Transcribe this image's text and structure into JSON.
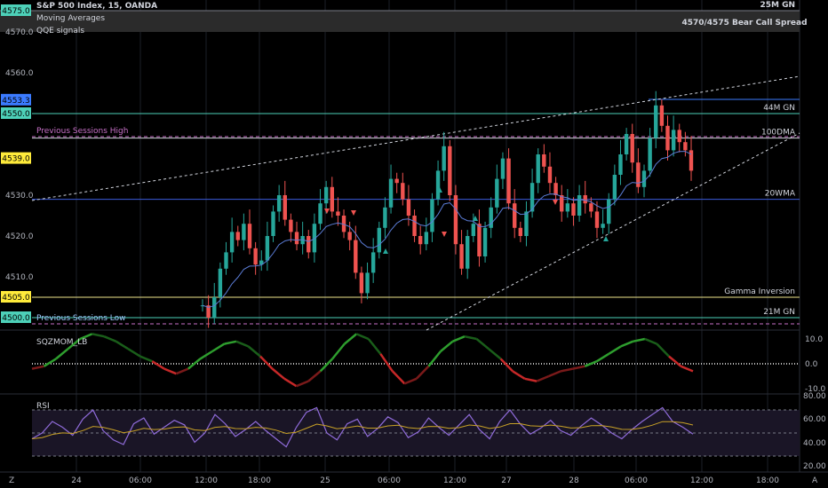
{
  "header": {
    "symbol": "S&P 500 Index, 15, OANDA",
    "indicator1": "Moving Averages",
    "indicator2": "QQE signals",
    "strategy_label": "4570/4575 Bear Call Spread",
    "top_right": "25M GN"
  },
  "levels": [
    {
      "name": "44M GN",
      "price": 4550.0,
      "color": "#4dd0b8"
    },
    {
      "name": "100DMA",
      "price": 4544.0,
      "color": "#d1d4dc"
    },
    {
      "name": "20WMA",
      "price": 4529.0,
      "color": "#3b5bdb"
    },
    {
      "name": "Gamma Inversion",
      "price": 4505.0,
      "color": "#f0e68c"
    },
    {
      "name": "21M GN",
      "price": 4500.0,
      "color": "#4dd0b8"
    }
  ],
  "session_labels": {
    "high": "Previous Sessions High",
    "low": "Previous Sessions Low"
  },
  "price_badges": [
    {
      "value": "4575.0",
      "color": "#4dd0b8"
    },
    {
      "value": "4553.3",
      "color": "#3b7bff"
    },
    {
      "value": "4550.0",
      "color": "#4dd0b8"
    },
    {
      "value": "4539.0",
      "color": "#ffeb3b"
    },
    {
      "value": "4505.0",
      "color": "#ffeb3b"
    },
    {
      "value": "4500.0",
      "color": "#4dd0b8"
    }
  ],
  "price_axis": [
    "4570.0",
    "4560.0",
    "4530.0",
    "4520.0",
    "4510.0"
  ],
  "time_axis": [
    "24",
    "06:00",
    "12:00",
    "18:00",
    "25",
    "06:00",
    "12:00",
    "27",
    "28",
    "06:00",
    "12:00",
    "18:00"
  ],
  "sqz": {
    "title": "SQZMOM_LB",
    "ticks": [
      "10.0",
      "0.0",
      "-10.0"
    ]
  },
  "rsi": {
    "title": "RSI",
    "ticks": [
      "80.00",
      "60.00",
      "40.00",
      "20.00"
    ]
  },
  "bottom": {
    "left": "Z",
    "right": "A"
  },
  "chart_data": {
    "type": "candlestick",
    "ylim": [
      4496,
      4580
    ],
    "close": [
      4503,
      4500,
      4505,
      4512,
      4516,
      4521,
      4519,
      4523,
      4517,
      4513,
      4514,
      4520,
      4526,
      4530,
      4524,
      4521,
      4518,
      4520,
      4516,
      4523,
      4528,
      4532,
      4526,
      4525,
      4521,
      4519,
      4511,
      4506,
      4511,
      4516,
      4522,
      4527,
      4534,
      4533,
      4529,
      4525,
      4520,
      4518,
      4521,
      4529,
      4536,
      4542,
      4530,
      4518,
      4512,
      4520,
      4523,
      4515,
      4522,
      4527,
      4534,
      4539,
      4528,
      4522,
      4520,
      4526,
      4533,
      4540,
      4537,
      4533,
      4530,
      4526,
      4528,
      4525,
      4530,
      4528,
      4526,
      4522,
      4523,
      4529,
      4535,
      4540,
      4545,
      4538,
      4532,
      4536,
      4544,
      4552,
      4547,
      4541,
      4546,
      4543,
      4541,
      4536
    ],
    "sqz_values": [
      -2,
      -1,
      2,
      6,
      10,
      12,
      11,
      9,
      6,
      3,
      1,
      -2,
      -4,
      -2,
      2,
      5,
      8,
      9,
      7,
      3,
      -2,
      -6,
      -9,
      -7,
      -3,
      2,
      8,
      12,
      10,
      4,
      -3,
      -8,
      -6,
      -1,
      5,
      9,
      11,
      10,
      6,
      2,
      -3,
      -6,
      -7,
      -5,
      -3,
      -2,
      -1,
      1,
      4,
      7,
      9,
      10,
      8,
      3,
      -1,
      -3
    ],
    "rsi_values": [
      45,
      50,
      60,
      55,
      48,
      62,
      70,
      52,
      44,
      40,
      58,
      63,
      49,
      55,
      61,
      57,
      42,
      50,
      66,
      58,
      47,
      53,
      60,
      52,
      45,
      38,
      55,
      68,
      72,
      50,
      44,
      58,
      62,
      47,
      54,
      64,
      59,
      46,
      51,
      63,
      55,
      48,
      57,
      66,
      53,
      45,
      60,
      70,
      58,
      49,
      54,
      61,
      52,
      48,
      56,
      63,
      57,
      50,
      45,
      53,
      60,
      66,
      72,
      60,
      55,
      49
    ]
  }
}
